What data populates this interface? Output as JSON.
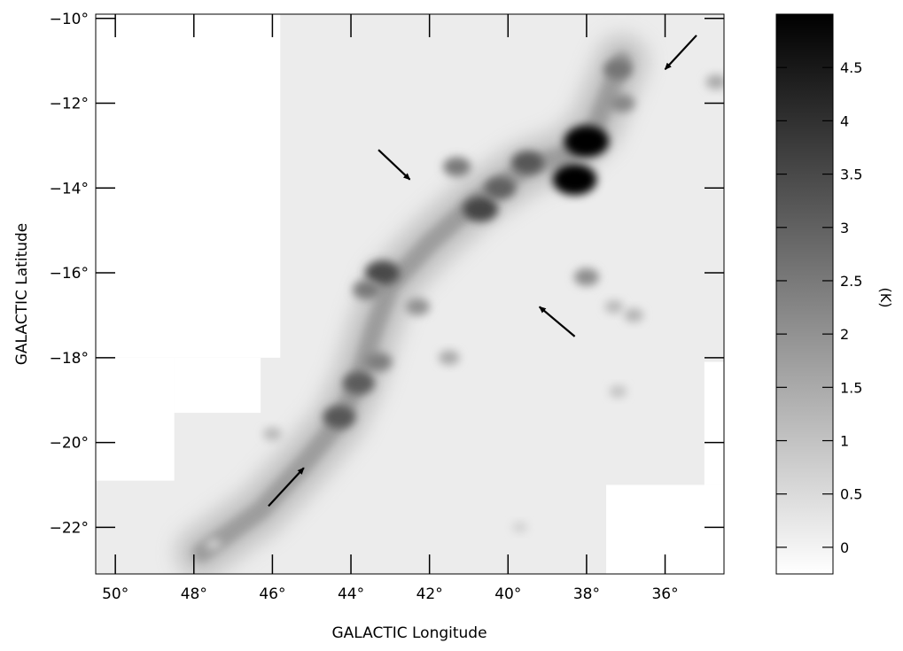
{
  "chart_data": {
    "type": "heatmap",
    "title": "",
    "xlabel": "GALACTIC Longitude",
    "ylabel": "GALACTIC Latitude",
    "x_axis_direction": "decreasing to the right",
    "xlim": [
      50.5,
      34.5
    ],
    "ylim": [
      -23.1,
      -9.9
    ],
    "x_tick_labels": [
      "50°",
      "48°",
      "46°",
      "44°",
      "42°",
      "40°",
      "38°",
      "36°"
    ],
    "x_tick_values": [
      50,
      48,
      46,
      44,
      42,
      40,
      38,
      36
    ],
    "y_tick_labels": [
      "−10°",
      "−12°",
      "−14°",
      "−16°",
      "−18°",
      "−20°",
      "−22°"
    ],
    "y_tick_values": [
      -10,
      -12,
      -14,
      -16,
      -18,
      -20,
      -22
    ],
    "colorbar": {
      "label": "(K)",
      "colormap": "grayscale, white to black",
      "range": [
        -0.25,
        5.0
      ],
      "tick_labels": [
        "0",
        "0.5",
        "1",
        "1.5",
        "2",
        "2.5",
        "3",
        "3.5",
        "4",
        "4.5"
      ],
      "tick_values": [
        0,
        0.5,
        1,
        1.5,
        2,
        2.5,
        3,
        3.5,
        4,
        4.5
      ]
    },
    "emission_peaks": [
      {
        "l": 38.0,
        "b": -12.9,
        "value": 5.0
      },
      {
        "l": 38.3,
        "b": -13.8,
        "value": 4.9
      },
      {
        "l": 40.7,
        "b": -14.5,
        "value": 3.6
      },
      {
        "l": 39.5,
        "b": -13.4,
        "value": 3.2
      },
      {
        "l": 40.2,
        "b": -14.0,
        "value": 3.0
      },
      {
        "l": 41.3,
        "b": -13.5,
        "value": 2.5
      },
      {
        "l": 43.2,
        "b": -16.0,
        "value": 3.5
      },
      {
        "l": 43.6,
        "b": -16.4,
        "value": 2.5
      },
      {
        "l": 42.3,
        "b": -16.8,
        "value": 2.0
      },
      {
        "l": 43.8,
        "b": -18.6,
        "value": 3.1
      },
      {
        "l": 43.3,
        "b": -18.1,
        "value": 2.4
      },
      {
        "l": 44.3,
        "b": -19.4,
        "value": 3.2
      },
      {
        "l": 41.5,
        "b": -18.0,
        "value": 1.5
      },
      {
        "l": 37.2,
        "b": -11.2,
        "value": 2.6
      },
      {
        "l": 37.1,
        "b": -12.0,
        "value": 2.2
      },
      {
        "l": 38.0,
        "b": -16.1,
        "value": 2.1
      },
      {
        "l": 36.8,
        "b": -17.0,
        "value": 1.3
      },
      {
        "l": 37.3,
        "b": -16.8,
        "value": 1.2
      },
      {
        "l": 37.2,
        "b": -18.8,
        "value": 1.0
      },
      {
        "l": 34.7,
        "b": -11.5,
        "value": 1.5
      },
      {
        "l": 46.0,
        "b": -19.8,
        "value": 1.2
      },
      {
        "l": 39.7,
        "b": -22.0,
        "value": 0.7
      },
      {
        "l": 47.5,
        "b": -22.4,
        "value": 0.8
      }
    ],
    "filament_spine": [
      {
        "l": 37.1,
        "b": -11.0
      },
      {
        "l": 37.8,
        "b": -12.6
      },
      {
        "l": 38.5,
        "b": -13.2
      },
      {
        "l": 39.5,
        "b": -13.5
      },
      {
        "l": 40.8,
        "b": -14.3
      },
      {
        "l": 42.0,
        "b": -15.3
      },
      {
        "l": 43.0,
        "b": -16.3
      },
      {
        "l": 43.4,
        "b": -17.3
      },
      {
        "l": 43.8,
        "b": -18.5
      },
      {
        "l": 44.3,
        "b": -19.5
      },
      {
        "l": 45.2,
        "b": -20.5
      },
      {
        "l": 46.3,
        "b": -21.6
      },
      {
        "l": 47.8,
        "b": -22.6
      }
    ],
    "surveyed_regions": [
      {
        "l": [
          49.5,
          34.5
        ],
        "b": [
          -23.1,
          -9.9
        ]
      }
    ],
    "unobserved_regions": [
      {
        "l": [
          50.5,
          45.8
        ],
        "b": [
          -18.0,
          -9.9
        ]
      },
      {
        "l": [
          48.5,
          46.3
        ],
        "b": [
          -19.3,
          -18.0
        ]
      },
      {
        "l": [
          50.5,
          48.5
        ],
        "b": [
          -20.9,
          -18.0
        ]
      },
      {
        "l": [
          37.5,
          34.5
        ],
        "b": [
          -23.1,
          -21.0
        ]
      },
      {
        "l": [
          35.0,
          34.5
        ],
        "b": [
          -21.0,
          -18.1
        ]
      }
    ],
    "arrows": [
      {
        "from": {
          "l": 35.2,
          "b": -10.4
        },
        "to": {
          "l": 36.0,
          "b": -11.2
        }
      },
      {
        "from": {
          "l": 43.3,
          "b": -13.1
        },
        "to": {
          "l": 42.5,
          "b": -13.8
        }
      },
      {
        "from": {
          "l": 38.3,
          "b": -17.5
        },
        "to": {
          "l": 39.2,
          "b": -16.8
        }
      },
      {
        "from": {
          "l": 46.1,
          "b": -21.5
        },
        "to": {
          "l": 45.2,
          "b": -20.6
        }
      }
    ]
  }
}
